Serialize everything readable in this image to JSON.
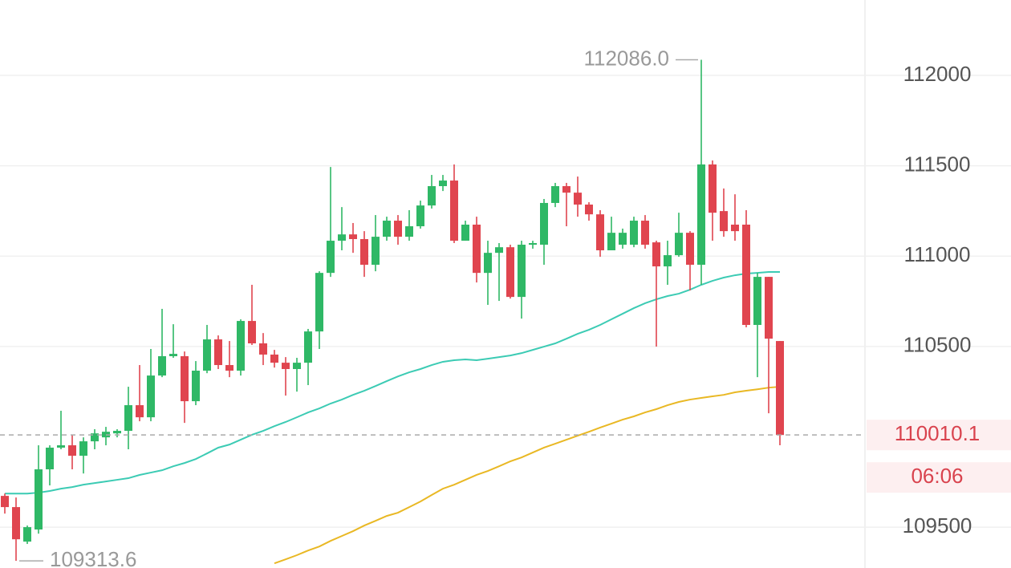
{
  "chart_data": {
    "type": "candlestick",
    "up_color": "#2fb866",
    "down_color": "#e0454f",
    "open": [
      109673,
      109611,
      109420,
      109487,
      109820,
      109940,
      109953,
      109895,
      109975,
      109997,
      110019,
      110033,
      110175,
      110108,
      110339,
      110446,
      110446,
      110197,
      110366,
      110539,
      110397,
      110366,
      110641,
      110517,
      110455,
      110410,
      110375,
      110410,
      110583,
      110907,
      111085,
      111120,
      111094,
      110952,
      111107,
      111196,
      111107,
      111165,
      111280,
      111387,
      111418,
      111085,
      111174,
      110907,
      111018,
      111049,
      110774,
      111063,
      111063,
      111294,
      111387,
      111351,
      111285,
      111231,
      111032,
      111063,
      111063,
      111196,
      111076,
      110943,
      111005,
      111129,
      110952,
      111507,
      111249,
      111174,
      111174,
      110619,
      110885,
      110530
    ],
    "high": [
      109686,
      109664,
      109509,
      109953,
      109953,
      110144,
      110011,
      109997,
      110042,
      110055,
      110042,
      110277,
      110397,
      110486,
      110708,
      110623,
      110472,
      110419,
      110619,
      110561,
      110530,
      110650,
      110841,
      110574,
      110481,
      110441,
      110437,
      110597,
      110916,
      111493,
      111271,
      111183,
      111138,
      111227,
      111218,
      111227,
      111254,
      111307,
      111449,
      111449,
      111507,
      111196,
      111218,
      111085,
      111072,
      111063,
      111085,
      111085,
      111316,
      111405,
      111405,
      111440,
      111298,
      111254,
      111218,
      111152,
      111218,
      111227,
      111085,
      111085,
      111240,
      111138,
      112086,
      111529,
      111374,
      111342,
      111254,
      110907,
      110885,
      110530
    ],
    "low": [
      109575,
      109313.6,
      109407,
      109464,
      109731,
      109931,
      109820,
      109797,
      109931,
      109953,
      109997,
      109931,
      110086,
      110086,
      110330,
      110437,
      110077,
      110175,
      110352,
      110375,
      110330,
      110339,
      110508,
      110397,
      110383,
      110228,
      110250,
      110286,
      110486,
      110885,
      111032,
      111018,
      110885,
      110916,
      111085,
      111063,
      111085,
      111152,
      111263,
      111360,
      111072,
      111085,
      110854,
      110730,
      110752,
      110765,
      110654,
      111041,
      110952,
      111271,
      111165,
      111218,
      111196,
      110996,
      111032,
      111041,
      111049,
      111041,
      110499,
      110841,
      110996,
      110810,
      110841,
      111085,
      111107,
      111085,
      110606,
      110330,
      110130,
      109953
    ],
    "close": [
      109611,
      109433,
      109500,
      109820,
      109940,
      109953,
      109895,
      109975,
      110019,
      110028,
      110033,
      110175,
      110108,
      110339,
      110446,
      110459,
      110197,
      110366,
      110539,
      110397,
      110366,
      110641,
      110517,
      110455,
      110410,
      110375,
      110410,
      110583,
      110907,
      111085,
      111120,
      111094,
      110952,
      111107,
      111196,
      111107,
      111165,
      111280,
      111387,
      111418,
      111085,
      111174,
      110907,
      111018,
      111049,
      110774,
      111063,
      111072,
      111294,
      111387,
      111351,
      111285,
      111231,
      111032,
      111129,
      111129,
      111196,
      111063,
      110943,
      111005,
      111129,
      110952,
      111507,
      111240,
      111138,
      111138,
      110619,
      110885,
      110543,
      110010.1
    ],
    "lines": [
      {
        "color": "#3ccbb4",
        "values": [
          109686,
          109686,
          109686,
          109691,
          109700,
          109713,
          109722,
          109735,
          109744,
          109753,
          109762,
          109771,
          109789,
          109802,
          109815,
          109837,
          109855,
          109877,
          109908,
          109940,
          109957,
          109984,
          110011,
          110033,
          110059,
          110082,
          110108,
          110135,
          110157,
          110184,
          110206,
          110232,
          110255,
          110281,
          110308,
          110334,
          110357,
          110375,
          110397,
          110415,
          110424,
          110428,
          110424,
          110432,
          110441,
          110450,
          110463,
          110481,
          110499,
          110517,
          110543,
          110570,
          110592,
          110619,
          110650,
          110681,
          110712,
          110739,
          110761,
          110779,
          110792,
          110814,
          110841,
          110863,
          110881,
          110894,
          110903,
          110907,
          110912,
          110912
        ]
      },
      {
        "color": "#e9b824",
        "values": [
          null,
          null,
          null,
          null,
          null,
          null,
          null,
          null,
          null,
          null,
          null,
          null,
          null,
          null,
          null,
          null,
          null,
          null,
          null,
          null,
          null,
          null,
          null,
          null,
          109300,
          109322,
          109345,
          109371,
          109393,
          109424,
          109451,
          109478,
          109509,
          109535,
          109562,
          109580,
          109611,
          109642,
          109678,
          109713,
          109735,
          109762,
          109789,
          109811,
          109837,
          109864,
          109886,
          109913,
          109940,
          109962,
          109984,
          110006,
          110028,
          110051,
          110073,
          110095,
          110113,
          110135,
          110153,
          110175,
          110193,
          110206,
          110215,
          110224,
          110232,
          110246,
          110255,
          110263,
          110272,
          110277
        ]
      }
    ],
    "ylim": [
      109274,
      112417
    ],
    "yticks": [
      109500,
      110500,
      111000,
      111500,
      112000
    ],
    "grid": true,
    "high_label": {
      "value": 112086,
      "label": "112086.0"
    },
    "low_label": 109313.6,
    "last_price": 110010.1,
    "countdown": "06:06"
  }
}
